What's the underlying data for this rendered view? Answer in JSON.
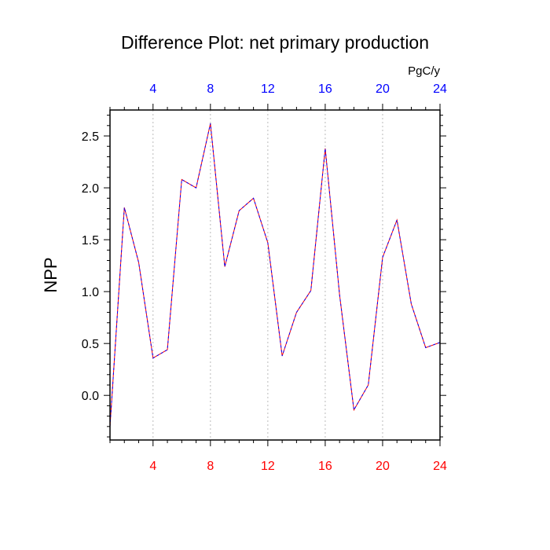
{
  "chart_data": {
    "type": "line",
    "title": "Difference Plot: net primary production",
    "units_label": "PgC/y",
    "ylabel": "NPP",
    "xlabel": "",
    "xlim": [
      1,
      24
    ],
    "ylim": [
      -0.43,
      2.75
    ],
    "x_ticks": [
      4,
      8,
      12,
      16,
      20,
      24
    ],
    "y_ticks": [
      0.0,
      0.5,
      1.0,
      1.5,
      2.0,
      2.5
    ],
    "y_tick_labels": [
      "0.0",
      "0.5",
      "1.0",
      "1.5",
      "2.0",
      "2.5"
    ],
    "grid": "vertical dotted at x ticks",
    "colors": {
      "bottom_tick_labels": "#ff0000",
      "top_tick_labels": "#0000ff",
      "line_primary": "#ff0000",
      "line_secondary": "#0000ff",
      "grid": "#bbbbbb"
    },
    "series": [
      {
        "name": "difference",
        "x": [
          1,
          2,
          3,
          4,
          5,
          6,
          7,
          8,
          9,
          10,
          11,
          12,
          13,
          14,
          15,
          16,
          17,
          18,
          19,
          20,
          21,
          22,
          23,
          24
        ],
        "values": [
          -0.3,
          1.81,
          1.28,
          0.36,
          0.44,
          2.08,
          2.0,
          2.62,
          1.24,
          1.78,
          1.9,
          1.47,
          0.38,
          0.8,
          1.01,
          2.38,
          0.97,
          -0.14,
          0.1,
          1.33,
          1.69,
          0.88,
          0.46,
          0.51
        ]
      }
    ]
  }
}
